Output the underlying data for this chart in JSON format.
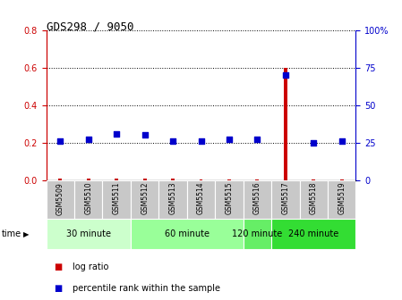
{
  "title": "GDS298 / 9050",
  "samples": [
    "GSM5509",
    "GSM5510",
    "GSM5511",
    "GSM5512",
    "GSM5513",
    "GSM5514",
    "GSM5515",
    "GSM5516",
    "GSM5517",
    "GSM5518",
    "GSM5519"
  ],
  "log_ratio": [
    0.01,
    0.01,
    0.01,
    0.01,
    0.01,
    0.005,
    0.005,
    0.005,
    0.6,
    0.005,
    0.005
  ],
  "percentile": [
    26,
    27,
    31,
    30,
    26,
    26,
    27,
    27,
    70,
    25,
    26
  ],
  "bar_color": "#cc0000",
  "dot_color": "#0000cc",
  "left_ylim": [
    0,
    0.8
  ],
  "right_ylim": [
    0,
    100
  ],
  "left_yticks": [
    0,
    0.2,
    0.4,
    0.6,
    0.8
  ],
  "right_yticks": [
    0,
    25,
    50,
    75,
    100
  ],
  "right_yticklabels": [
    "0",
    "25",
    "50",
    "75",
    "100%"
  ],
  "groups": [
    {
      "label": "30 minute",
      "start": 0,
      "end": 2,
      "color": "#ccffcc"
    },
    {
      "label": "60 minute",
      "start": 3,
      "end": 6,
      "color": "#99ff99"
    },
    {
      "label": "120 minute",
      "start": 7,
      "end": 7,
      "color": "#66ee66"
    },
    {
      "label": "240 minute",
      "start": 8,
      "end": 10,
      "color": "#33dd33"
    }
  ],
  "legend_items": [
    {
      "label": "log ratio",
      "color": "#cc0000"
    },
    {
      "label": "percentile rank within the sample",
      "color": "#0000cc"
    }
  ],
  "bg_color": "#ffffff",
  "grid_color": "#000000",
  "title_color": "#000000",
  "left_axis_color": "#cc0000",
  "right_axis_color": "#0000cc",
  "sample_box_color": "#c8c8c8",
  "sample_box_edge": "#ffffff"
}
